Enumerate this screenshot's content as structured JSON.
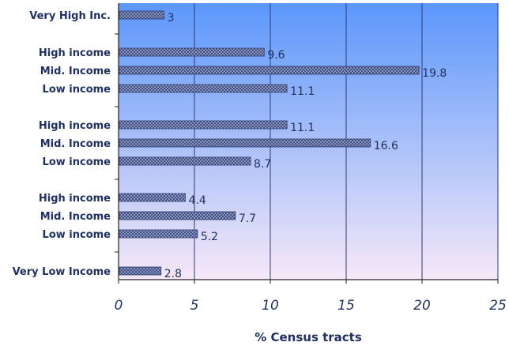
{
  "chart_data": {
    "type": "bar",
    "orientation": "horizontal",
    "categories": [
      "Very High Inc.",
      "High income",
      "Mid. Income",
      "Low income",
      "High income",
      "Mid. Income",
      "Low income",
      "High income",
      "Mid. Income",
      "Low income",
      "Very Low Income"
    ],
    "values": [
      3,
      9.6,
      19.8,
      11.1,
      11.1,
      16.6,
      8.7,
      4.4,
      7.7,
      5.2,
      2.8
    ],
    "value_labels": [
      "3",
      "9.6",
      "19.8",
      "11.1",
      "11.1",
      "16.6",
      "8.7",
      "4.4",
      "7.7",
      "5.2",
      "2.8"
    ],
    "xlabel": "% Census tracts",
    "ylabel": "",
    "xlim": [
      0,
      25
    ],
    "xticks": [
      0,
      5,
      10,
      15,
      20,
      25
    ],
    "grid": "vertical",
    "legend": "none",
    "colors": {
      "plot_top": "#5b97fb",
      "plot_bottom": "#f6e8f7",
      "bar_fill": "#9fa6c9",
      "bar_pattern": "#2d3f77",
      "grid": "#2b3a70",
      "text": "#1f2f5f"
    }
  }
}
